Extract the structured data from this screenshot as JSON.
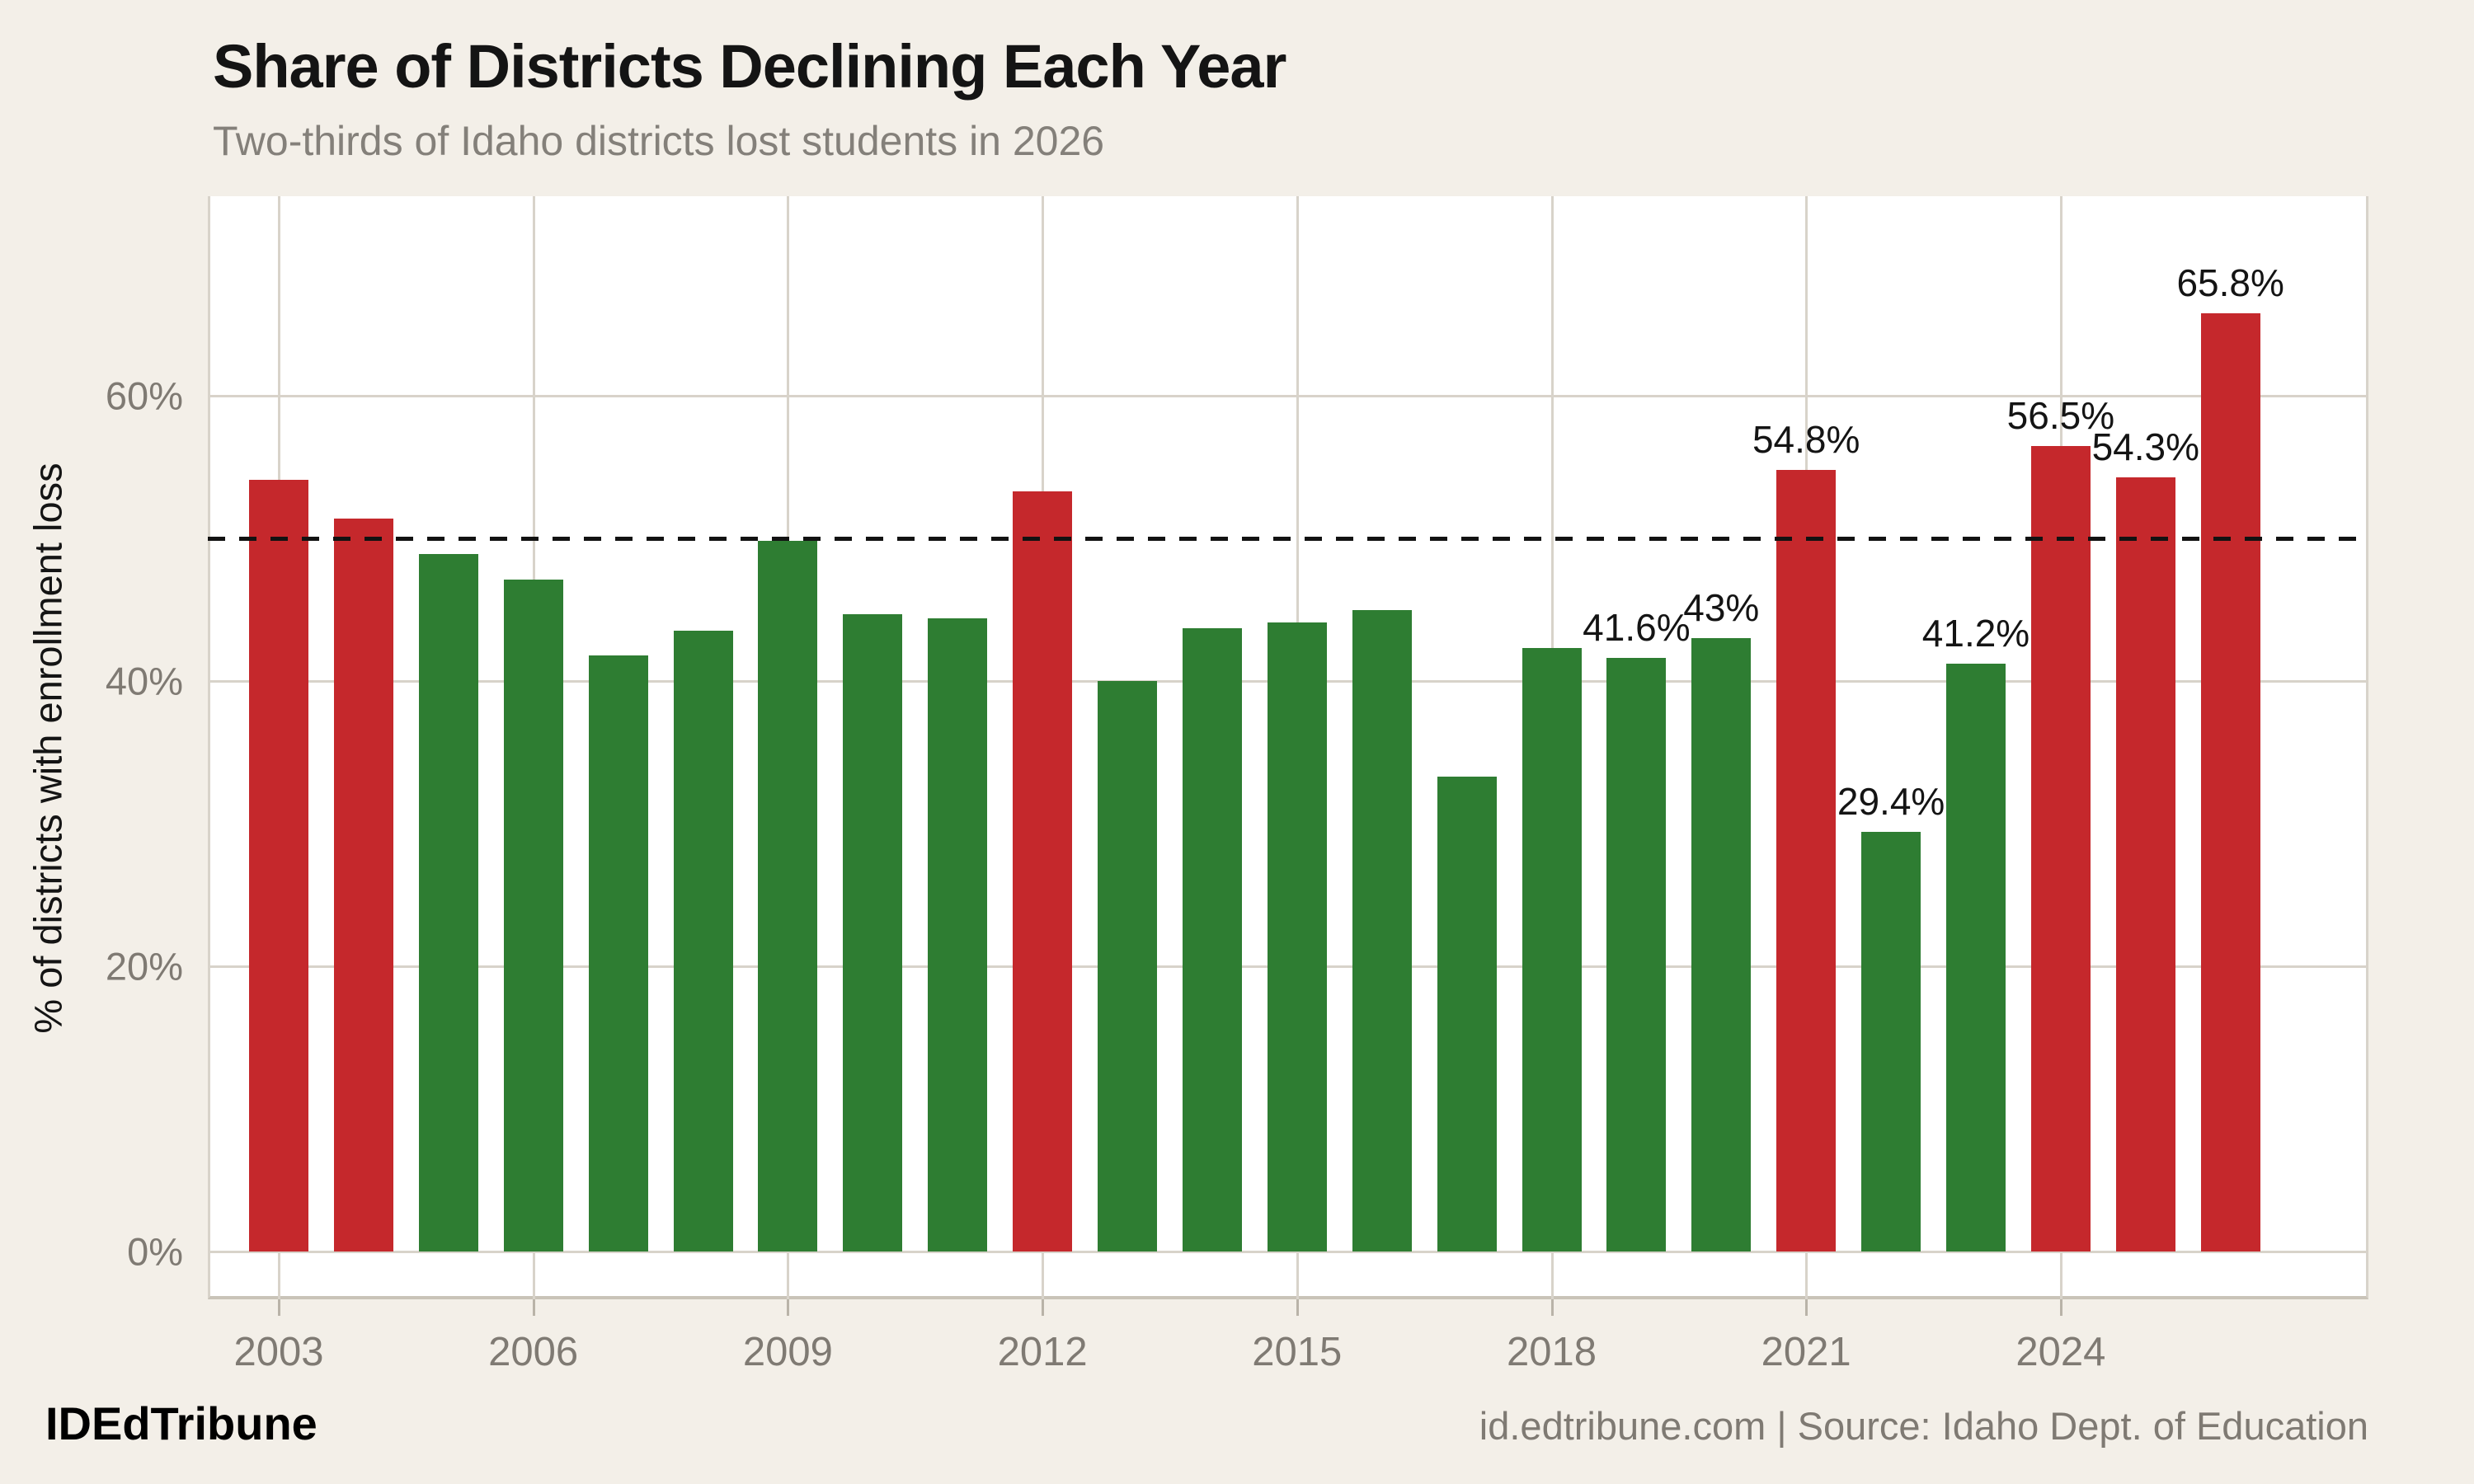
{
  "header": {
    "title": "Share of Districts Declining Each Year",
    "subtitle": "Two-thirds of Idaho districts lost students in 2026"
  },
  "y_axis": {
    "title": "% of districts with enrollment loss",
    "ticks": [
      {
        "label": "0%",
        "value": 0
      },
      {
        "label": "20%",
        "value": 20
      },
      {
        "label": "40%",
        "value": 40
      },
      {
        "label": "60%",
        "value": 60
      }
    ]
  },
  "x_axis": {
    "ticks": [
      {
        "label": "2003",
        "year": 2003
      },
      {
        "label": "2006",
        "year": 2006
      },
      {
        "label": "2009",
        "year": 2009
      },
      {
        "label": "2012",
        "year": 2012
      },
      {
        "label": "2015",
        "year": 2015
      },
      {
        "label": "2018",
        "year": 2018
      },
      {
        "label": "2021",
        "year": 2021
      },
      {
        "label": "2024",
        "year": 2024
      }
    ]
  },
  "reference_line": {
    "value": 50,
    "style": "dashed",
    "color": "#121212"
  },
  "colors": {
    "background": "#f3efe8",
    "panel": "#ffffff",
    "grid": "#d8d3ca",
    "above_50_bar": "#c5282c",
    "below_50_bar": "#2e7d32",
    "axis_text": "#7f7a73",
    "label_text": "#141414"
  },
  "chart_data": {
    "type": "bar",
    "title": "Share of Districts Declining Each Year",
    "subtitle": "Two-thirds of Idaho districts lost students in 2026",
    "xlabel": "",
    "ylabel": "% of districts with enrollment loss",
    "ylim": [
      0,
      74
    ],
    "grid": "horizontal 0/20/40/60 and vertical at labeled years",
    "legend": "none",
    "color_rule": "bars above 50% are red, bars at or below 50% are green",
    "points": [
      {
        "year": 2003,
        "value": 54.1,
        "label": null
      },
      {
        "year": 2004,
        "value": 51.4,
        "label": null
      },
      {
        "year": 2005,
        "value": 48.9,
        "label": null
      },
      {
        "year": 2006,
        "value": 47.1,
        "label": null
      },
      {
        "year": 2007,
        "value": 41.8,
        "label": null
      },
      {
        "year": 2008,
        "value": 43.5,
        "label": null
      },
      {
        "year": 2009,
        "value": 49.8,
        "label": null
      },
      {
        "year": 2010,
        "value": 44.7,
        "label": null
      },
      {
        "year": 2011,
        "value": 44.4,
        "label": null
      },
      {
        "year": 2012,
        "value": 53.3,
        "label": null
      },
      {
        "year": 2013,
        "value": 40.0,
        "label": null
      },
      {
        "year": 2014,
        "value": 43.7,
        "label": null
      },
      {
        "year": 2015,
        "value": 44.1,
        "label": null
      },
      {
        "year": 2016,
        "value": 45.0,
        "label": null
      },
      {
        "year": 2017,
        "value": 33.3,
        "label": null
      },
      {
        "year": 2018,
        "value": 42.3,
        "label": null
      },
      {
        "year": 2019,
        "value": 41.6,
        "label": "41.6%"
      },
      {
        "year": 2020,
        "value": 43.0,
        "label": "43%"
      },
      {
        "year": 2021,
        "value": 54.8,
        "label": "54.8%"
      },
      {
        "year": 2022,
        "value": 29.4,
        "label": "29.4%"
      },
      {
        "year": 2023,
        "value": 41.2,
        "label": "41.2%"
      },
      {
        "year": 2024,
        "value": 56.5,
        "label": "56.5%"
      },
      {
        "year": 2025,
        "value": 54.3,
        "label": "54.3%"
      },
      {
        "year": 2026,
        "value": 65.8,
        "label": "65.8%"
      }
    ]
  },
  "footer": {
    "brand": "IDEdTribune",
    "attribution": "id.edtribune.com | Source: Idaho Dept. of Education"
  }
}
